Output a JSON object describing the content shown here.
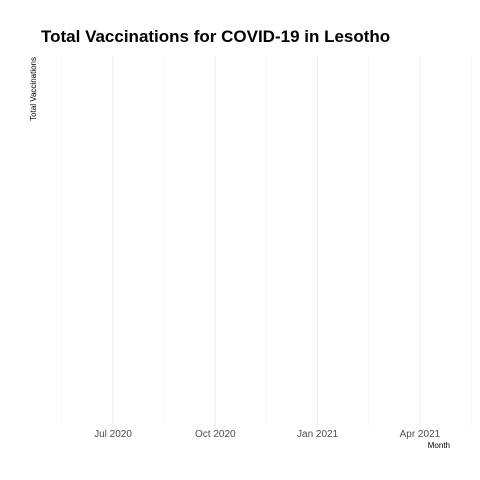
{
  "chart_data": {
    "type": "line",
    "title": "Total Vaccinations for COVID-19 in Lesotho",
    "xlabel": "Month",
    "ylabel": "Total Vaccinations",
    "x_ticks": [
      "Jul 2020",
      "Oct 2020",
      "Jan 2021",
      "Apr 2021"
    ],
    "xlim": [
      "2020-05-15",
      "2021-05-15"
    ],
    "series": [],
    "grid": true,
    "legend": "none"
  }
}
